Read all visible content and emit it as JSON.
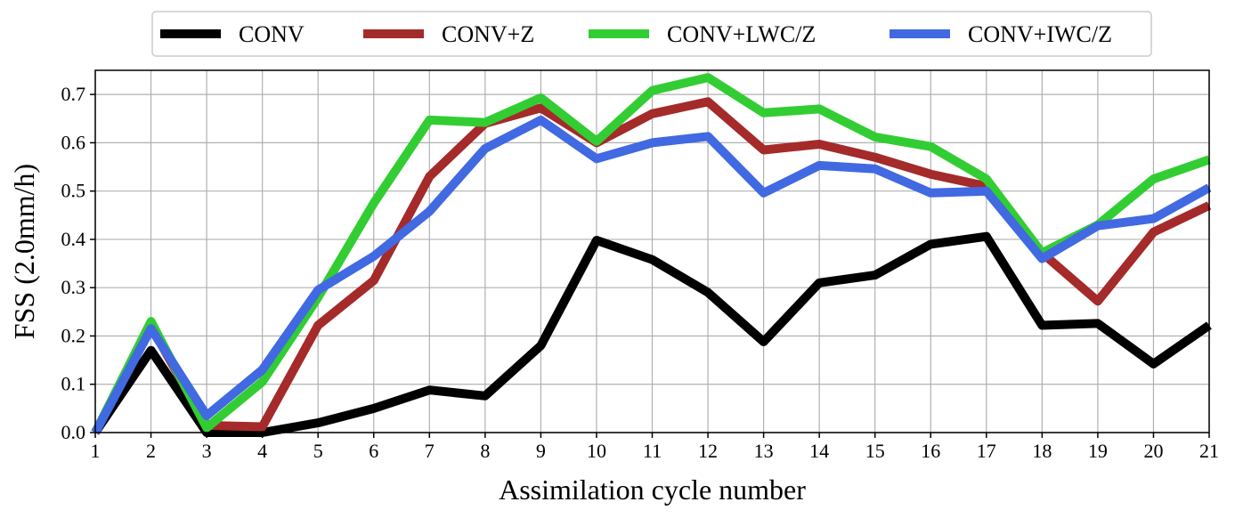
{
  "chart_data": {
    "type": "line",
    "title": "",
    "xlabel": "Assimilation cycle number",
    "ylabel": "FSS (2.0mm/h)",
    "x": [
      1,
      2,
      3,
      4,
      5,
      6,
      7,
      8,
      9,
      10,
      11,
      12,
      13,
      14,
      15,
      16,
      17,
      18,
      19,
      20,
      21
    ],
    "xlim": [
      1,
      21
    ],
    "ylim": [
      0,
      0.75
    ],
    "xticks": [
      "1",
      "2",
      "3",
      "4",
      "5",
      "6",
      "7",
      "8",
      "9",
      "10",
      "11",
      "12",
      "13",
      "14",
      "15",
      "16",
      "17",
      "18",
      "19",
      "20",
      "21"
    ],
    "yticks": [
      "0.0",
      "0.1",
      "0.2",
      "0.3",
      "0.4",
      "0.5",
      "0.6",
      "0.7"
    ],
    "grid": true,
    "legend_position": "top-center",
    "series": [
      {
        "name": "CONV",
        "color": "#000000",
        "values": [
          0.0,
          0.17,
          0.0,
          0.0,
          0.02,
          0.05,
          0.088,
          0.076,
          0.18,
          0.398,
          0.358,
          0.29,
          0.188,
          0.31,
          0.326,
          0.39,
          0.406,
          0.222,
          0.226,
          0.142,
          0.222
        ]
      },
      {
        "name": "CONV+Z",
        "color": "#a52a2a",
        "values": [
          0.0,
          0.22,
          0.015,
          0.012,
          0.222,
          0.315,
          0.53,
          0.64,
          0.672,
          0.6,
          0.66,
          0.685,
          0.585,
          0.597,
          0.57,
          0.535,
          0.51,
          0.372,
          0.272,
          0.415,
          0.47
        ]
      },
      {
        "name": "CONV+LWC/Z",
        "color": "#32cd32",
        "values": [
          0.0,
          0.23,
          0.01,
          0.105,
          0.28,
          0.475,
          0.647,
          0.642,
          0.693,
          0.603,
          0.708,
          0.735,
          0.662,
          0.67,
          0.612,
          0.592,
          0.525,
          0.372,
          0.43,
          0.525,
          0.565
        ]
      },
      {
        "name": "CONV+IWC/Z",
        "color": "#4169e1",
        "values": [
          0.0,
          0.215,
          0.035,
          0.13,
          0.295,
          0.365,
          0.458,
          0.588,
          0.647,
          0.567,
          0.6,
          0.613,
          0.496,
          0.553,
          0.546,
          0.496,
          0.5,
          0.36,
          0.428,
          0.443,
          0.507
        ]
      }
    ]
  }
}
